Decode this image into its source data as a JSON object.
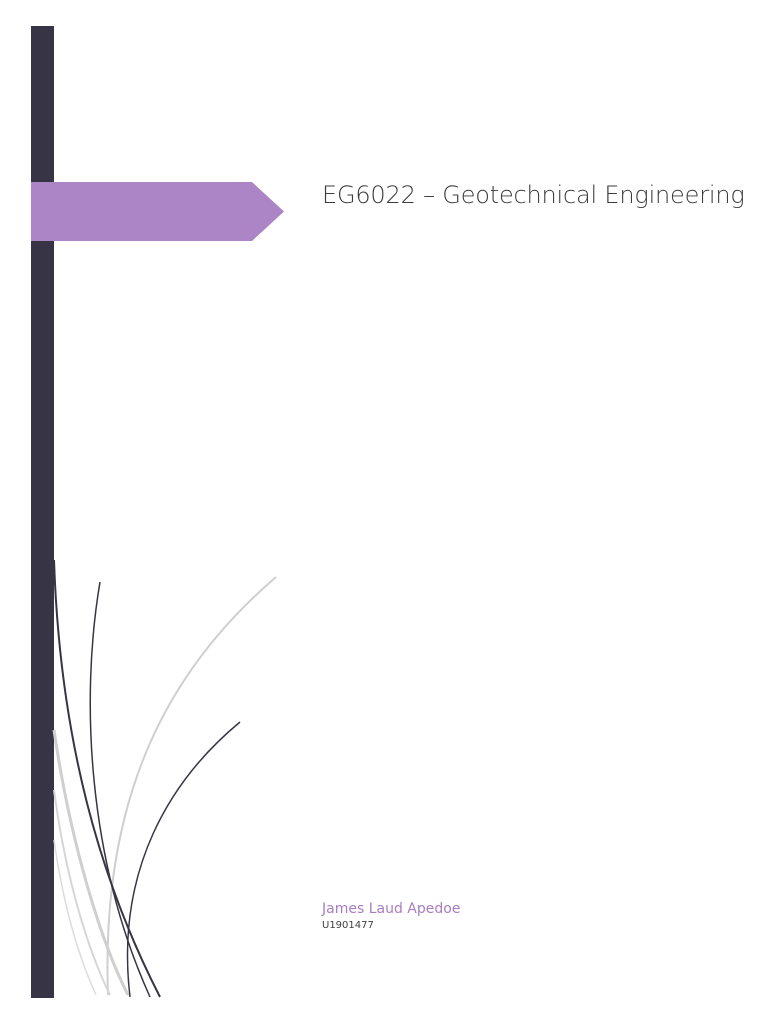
{
  "document": {
    "title": "EG6022 – Geotechnical Engineering",
    "author": "James Laud Apedoe",
    "student_id": "U1901477"
  },
  "colors": {
    "sidebar": "#373545",
    "accent_arrow": "#ab85c5",
    "author_text": "#a97dc1",
    "curve_dark": "#373545",
    "curve_light": "#cfcfcf"
  },
  "decorations": {
    "arrow_banner": "purple-arrow-banner",
    "curves": "decorative-grass-curves"
  }
}
